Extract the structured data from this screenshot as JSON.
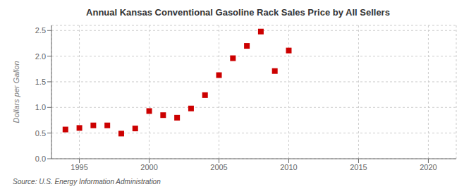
{
  "chart_data": {
    "type": "scatter",
    "title": "Annual Kansas Conventional Gasoline Rack Sales Price by All Sellers",
    "ylabel": "Dollars per Gallon",
    "source": "Source: U.S. Energy Information Administration",
    "x": [
      1994,
      1995,
      1996,
      1997,
      1998,
      1999,
      2000,
      2001,
      2002,
      2003,
      2004,
      2005,
      2006,
      2007,
      2008,
      2009,
      2010
    ],
    "values": [
      0.57,
      0.6,
      0.65,
      0.65,
      0.49,
      0.59,
      0.93,
      0.85,
      0.8,
      0.98,
      1.24,
      1.63,
      1.96,
      2.2,
      2.48,
      1.71,
      2.11
    ],
    "color": "#cc0000",
    "marker": "square",
    "xlim": [
      1993,
      2022
    ],
    "xticks": [
      1995,
      2000,
      2005,
      2010,
      2015,
      2020
    ],
    "ylim": [
      0.0,
      2.6
    ],
    "yticks": [
      {
        "value": 0.0,
        "label": "0.0"
      },
      0.5,
      {
        "value": 1.0,
        "label": "1.0"
      },
      1.5,
      {
        "value": 2.0,
        "label": "2.0"
      },
      2.5
    ],
    "grid": true
  }
}
